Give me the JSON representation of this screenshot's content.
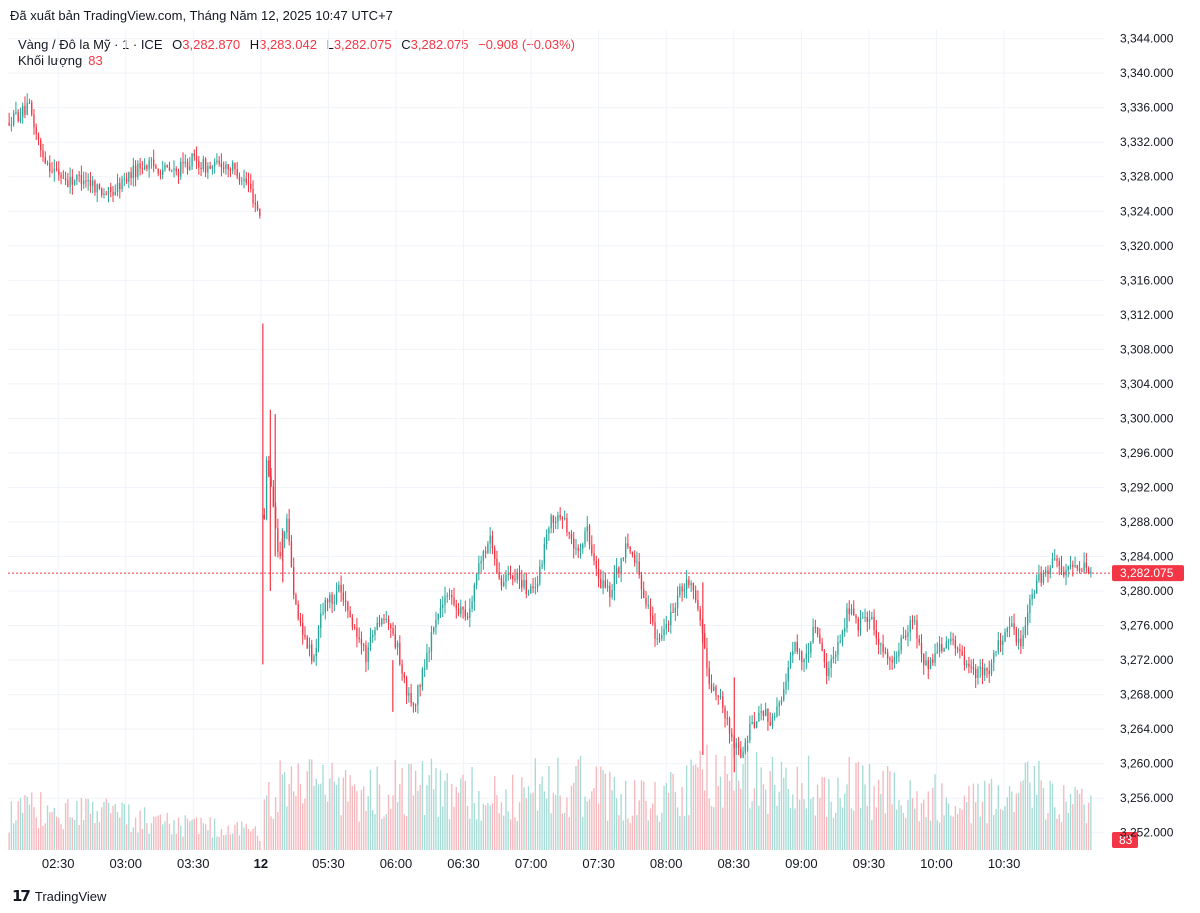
{
  "published": "Đã xuất bản TradingView.com, Tháng Năm 12, 2025 10:47 UTC+7",
  "legend": {
    "symbol": "Vàng / Đô la Mỹ · 1 · ICE",
    "o_label": "O",
    "o_value": "3,282.870",
    "h_label": "H",
    "h_value": "3,283.042",
    "l_label": "L",
    "l_value": "3,282.075",
    "c_label": "C",
    "c_value": "3,282.075",
    "change": "−0.908 (−0.03%)",
    "volume_label": "Khối lượng",
    "volume_value": "83"
  },
  "colors": {
    "up": "#26a69a",
    "down": "#f23645",
    "grid": "#f0f3fa",
    "text": "#131722"
  },
  "brand": "TradingView",
  "chart_data": {
    "type": "candlestick",
    "title": "Vàng / Đô la Mỹ · 1 · ICE",
    "ylim": [
      3250,
      3345
    ],
    "y_ticks": [
      3344,
      3340,
      3336,
      3332,
      3328,
      3324,
      3320,
      3316,
      3312,
      3308,
      3304,
      3300,
      3296,
      3292,
      3288,
      3284,
      3280,
      3276,
      3272,
      3268,
      3264,
      3260,
      3256,
      3252
    ],
    "y_tick_labels": [
      "3,344.000",
      "3,340.000",
      "3,336.000",
      "3,332.000",
      "3,328.000",
      "3,324.000",
      "3,320.000",
      "3,316.000",
      "3,312.000",
      "3,308.000",
      "3,304.000",
      "3,300.000",
      "3,296.000",
      "3,292.000",
      "3,288.000",
      "3,284.000",
      "3,280.000",
      "3,276.000",
      "3,272.000",
      "3,268.000",
      "3,264.000",
      "3,260.000",
      "3,256.000",
      "3,252.000"
    ],
    "x_ticks": [
      {
        "label": "02:30",
        "pos": 0.0463
      },
      {
        "label": "03:00",
        "pos": 0.1086
      },
      {
        "label": "03:30",
        "pos": 0.1709
      },
      {
        "label": "12",
        "pos": 0.2333,
        "bold": true
      },
      {
        "label": "05:30",
        "pos": 0.2956
      },
      {
        "label": "06:00",
        "pos": 0.3579
      },
      {
        "label": "06:30",
        "pos": 0.4202
      },
      {
        "label": "07:00",
        "pos": 0.4826
      },
      {
        "label": "07:30",
        "pos": 0.5449
      },
      {
        "label": "08:00",
        "pos": 0.6072
      },
      {
        "label": "08:30",
        "pos": 0.6695
      },
      {
        "label": "09:00",
        "pos": 0.7319
      },
      {
        "label": "09:30",
        "pos": 0.7942
      },
      {
        "label": "10:00",
        "pos": 0.8565
      },
      {
        "label": "10:30",
        "pos": 0.9189
      }
    ],
    "session1_close_pos": 0.2333,
    "session2_start_pos": 0.2351,
    "last_price": 3282.075,
    "last_price_label": "3,282.075",
    "last_volume_label": "83",
    "path": [
      [
        0.0,
        3334.5
      ],
      [
        0.02,
        3336.0
      ],
      [
        0.03,
        3331.0
      ],
      [
        0.04,
        3329.0
      ],
      [
        0.055,
        3327.5
      ],
      [
        0.07,
        3328.0
      ],
      [
        0.085,
        3326.5
      ],
      [
        0.095,
        3326.0
      ],
      [
        0.11,
        3328.0
      ],
      [
        0.125,
        3329.5
      ],
      [
        0.14,
        3329.0
      ],
      [
        0.155,
        3328.5
      ],
      [
        0.17,
        3330.0
      ],
      [
        0.185,
        3329.0
      ],
      [
        0.2,
        3329.5
      ],
      [
        0.212,
        3328.5
      ],
      [
        0.222,
        3327.0
      ],
      [
        0.228,
        3325.0
      ],
      [
        0.233,
        3323.5
      ],
      [
        0.2351,
        3282.0
      ],
      [
        0.238,
        3296.0
      ],
      [
        0.243,
        3292.0
      ],
      [
        0.25,
        3284.0
      ],
      [
        0.258,
        3288.0
      ],
      [
        0.265,
        3278.0
      ],
      [
        0.275,
        3274.0
      ],
      [
        0.282,
        3272.0
      ],
      [
        0.29,
        3278.0
      ],
      [
        0.305,
        3280.0
      ],
      [
        0.318,
        3276.0
      ],
      [
        0.33,
        3272.5
      ],
      [
        0.34,
        3276.5
      ],
      [
        0.35,
        3277.0
      ],
      [
        0.36,
        3273.0
      ],
      [
        0.368,
        3268.0
      ],
      [
        0.375,
        3267.0
      ],
      [
        0.385,
        3272.0
      ],
      [
        0.395,
        3277.0
      ],
      [
        0.405,
        3280.0
      ],
      [
        0.415,
        3278.0
      ],
      [
        0.425,
        3277.0
      ],
      [
        0.435,
        3284.0
      ],
      [
        0.445,
        3286.0
      ],
      [
        0.455,
        3281.0
      ],
      [
        0.47,
        3282.0
      ],
      [
        0.48,
        3279.5
      ],
      [
        0.49,
        3282.0
      ],
      [
        0.5,
        3288.0
      ],
      [
        0.51,
        3289.0
      ],
      [
        0.525,
        3284.0
      ],
      [
        0.535,
        3287.0
      ],
      [
        0.545,
        3281.0
      ],
      [
        0.555,
        3280.0
      ],
      [
        0.57,
        3285.0
      ],
      [
        0.58,
        3283.0
      ],
      [
        0.59,
        3278.0
      ],
      [
        0.6,
        3274.0
      ],
      [
        0.61,
        3276.5
      ],
      [
        0.62,
        3280.0
      ],
      [
        0.63,
        3281.0
      ],
      [
        0.64,
        3276.0
      ],
      [
        0.648,
        3269.0
      ],
      [
        0.655,
        3268.0
      ],
      [
        0.665,
        3264.0
      ],
      [
        0.675,
        3261.0
      ],
      [
        0.685,
        3264.0
      ],
      [
        0.695,
        3266.0
      ],
      [
        0.705,
        3265.0
      ],
      [
        0.715,
        3268.0
      ],
      [
        0.725,
        3274.0
      ],
      [
        0.735,
        3272.0
      ],
      [
        0.745,
        3276.0
      ],
      [
        0.755,
        3270.0
      ],
      [
        0.765,
        3273.0
      ],
      [
        0.775,
        3278.0
      ],
      [
        0.785,
        3276.0
      ],
      [
        0.795,
        3277.0
      ],
      [
        0.805,
        3274.0
      ],
      [
        0.815,
        3272.0
      ],
      [
        0.825,
        3274.5
      ],
      [
        0.835,
        3277.0
      ],
      [
        0.845,
        3271.0
      ],
      [
        0.855,
        3272.5
      ],
      [
        0.865,
        3274.0
      ],
      [
        0.875,
        3273.5
      ],
      [
        0.885,
        3271.5
      ],
      [
        0.895,
        3270.5
      ],
      [
        0.905,
        3271.0
      ],
      [
        0.915,
        3274.0
      ],
      [
        0.925,
        3276.0
      ],
      [
        0.935,
        3273.5
      ],
      [
        0.945,
        3280.0
      ],
      [
        0.955,
        3282.0
      ],
      [
        0.965,
        3283.5
      ],
      [
        0.975,
        3282.5
      ],
      [
        0.985,
        3283.0
      ],
      [
        1.0,
        3282.1
      ]
    ],
    "spikes": [
      {
        "pos": 0.2351,
        "high": 3311.0,
        "low": 3271.5
      },
      {
        "pos": 0.242,
        "high": 3301.0,
        "low": 3280.0
      },
      {
        "pos": 0.2465,
        "high": 3300.5,
        "low": 3284.0
      },
      {
        "pos": 0.2535,
        "high": 3287.0,
        "low": 3281.0
      },
      {
        "pos": 0.355,
        "high": 3272.0,
        "low": 3266.0
      },
      {
        "pos": 0.641,
        "high": 3281.0,
        "low": 3261.0
      },
      {
        "pos": 0.67,
        "high": 3270.0,
        "low": 3259.0
      }
    ],
    "volume_ylim": [
      0,
      160
    ],
    "volume_profile": [
      [
        0.0,
        40
      ],
      [
        0.02,
        45
      ],
      [
        0.04,
        50
      ],
      [
        0.08,
        42
      ],
      [
        0.12,
        38
      ],
      [
        0.16,
        30
      ],
      [
        0.2,
        25
      ],
      [
        0.233,
        20
      ],
      [
        0.2351,
        60
      ],
      [
        0.26,
        80
      ],
      [
        0.3,
        72
      ],
      [
        0.33,
        65
      ],
      [
        0.36,
        80
      ],
      [
        0.39,
        75
      ],
      [
        0.42,
        68
      ],
      [
        0.45,
        60
      ],
      [
        0.48,
        70
      ],
      [
        0.5,
        82
      ],
      [
        0.53,
        74
      ],
      [
        0.56,
        62
      ],
      [
        0.59,
        60
      ],
      [
        0.62,
        70
      ],
      [
        0.65,
        88
      ],
      [
        0.665,
        95
      ],
      [
        0.69,
        85
      ],
      [
        0.72,
        78
      ],
      [
        0.76,
        76
      ],
      [
        0.8,
        70
      ],
      [
        0.84,
        62
      ],
      [
        0.87,
        58
      ],
      [
        0.9,
        60
      ],
      [
        0.93,
        68
      ],
      [
        0.95,
        74
      ],
      [
        0.975,
        60
      ],
      [
        1.0,
        45
      ]
    ]
  }
}
